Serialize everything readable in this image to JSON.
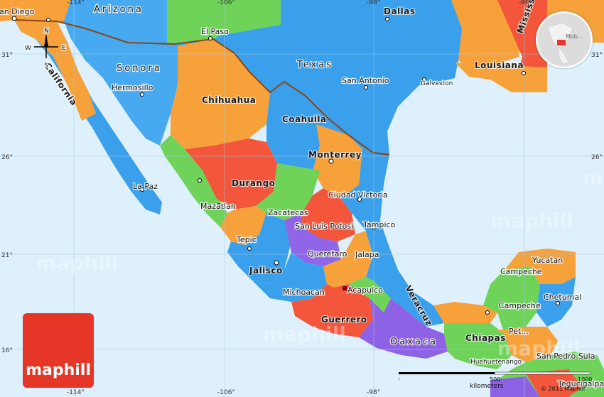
{
  "lon_labels": [
    "-114°",
    "-106°",
    "-98°",
    "-90°"
  ],
  "lat_labels": [
    "31°",
    "26°",
    "21°",
    "16°"
  ],
  "us_states": [
    "Arizona",
    "Texas",
    "California",
    "Louisiana",
    "Mississippi"
  ],
  "mx_states": [
    "Sonora",
    "Chihuahua",
    "Coahuila",
    "Durango",
    "Zacatecas",
    "San Luis Potosi",
    "Jalisco",
    "Michoacan",
    "Guerrero",
    "Oaxaca",
    "Veracruz",
    "Chiapas",
    "Campeche",
    "Yucatan",
    "Queretaro",
    "Jalapa",
    "Acapulco"
  ],
  "cities": [
    "San Diego",
    "El Paso",
    "Dallas",
    "San Antonio",
    "Galveston",
    "Hermosillo",
    "Monterrey",
    "Ciudad Victoria",
    "Tampico",
    "La Paz",
    "Mazatlan",
    "Tepic",
    "Campeche",
    "Chetumal",
    "San Pedro Sula",
    "Tegucigalpa",
    "Huehuetenango"
  ],
  "other_labels": [
    "Pet..."
  ],
  "compass": {
    "n": "N",
    "s": "S",
    "e": "E",
    "w": "W"
  },
  "watermark": "maphill",
  "brand": "maphill",
  "scale": {
    "left": "0",
    "mid": "500",
    "right": "1000",
    "unit": "kilometers"
  },
  "copyright": "© 2011 Maphill",
  "globe_label": "Mob..."
}
